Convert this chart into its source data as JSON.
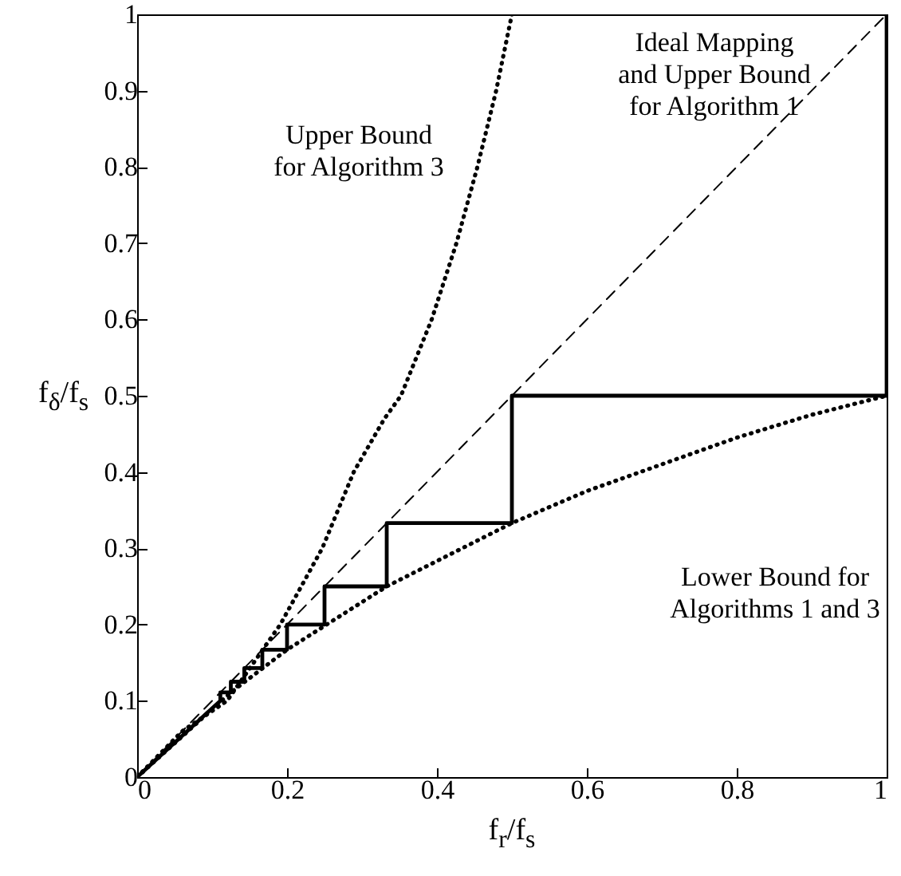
{
  "chart_data": {
    "type": "line",
    "xlabel": "f$_{r}$/f$_{s}$",
    "ylabel": "f$_{δ}$/f$_{s}$",
    "xlim": [
      0,
      1
    ],
    "ylim": [
      0,
      1
    ],
    "xticks": [
      0,
      0.2,
      0.4,
      0.6,
      0.8,
      1
    ],
    "yticks": [
      0,
      0.1,
      0.2,
      0.3,
      0.4,
      0.5,
      0.6,
      0.7,
      0.8,
      0.9,
      1
    ],
    "series": [
      {
        "color": "#000000",
        "line_style": "dotted",
        "x": [
          0,
          0.06,
          0.12,
          0.191,
          0.247,
          0.289,
          0.33,
          0.352,
          0.393,
          0.426,
          0.454,
          0.479,
          0.5
        ],
        "values": [
          0,
          0.06,
          0.1,
          0.2,
          0.3,
          0.4,
          0.47,
          0.5,
          0.6,
          0.7,
          0.8,
          0.9,
          1
        ]
      },
      {
        "color": "#000000",
        "line_style": "dashed",
        "x": [
          0,
          1
        ],
        "values": [
          0,
          1
        ]
      },
      {
        "color": "#000000",
        "line_style": "dotted",
        "x": [
          0,
          0.125,
          0.2,
          0.333,
          0.5,
          0.6,
          0.7,
          0.8,
          0.9,
          1
        ],
        "values": [
          0,
          0.111,
          0.167,
          0.25,
          0.333,
          0.375,
          0.41,
          0.445,
          0.475,
          0.5
        ]
      },
      {
        "color": "#000000",
        "line_style": "solid",
        "x": [
          0,
          0.111,
          0.111,
          0.125,
          0.125,
          0.143,
          0.143,
          0.167,
          0.167,
          0.2,
          0.2,
          0.25,
          0.25,
          0.333,
          0.333,
          0.5,
          0.5,
          1,
          1
        ],
        "values": [
          0,
          0.1,
          0.111,
          0.111,
          0.125,
          0.125,
          0.143,
          0.143,
          0.167,
          0.167,
          0.2,
          0.2,
          0.25,
          0.25,
          0.333,
          0.333,
          0.5,
          0.5,
          1
        ]
      }
    ],
    "annotations": [
      "Upper Bound\nfor Algorithm 3",
      "Ideal Mapping\nand Upper Bound\nfor Algorithm 1",
      "Lower Bound for\nAlgorithms 1 and 3"
    ]
  }
}
